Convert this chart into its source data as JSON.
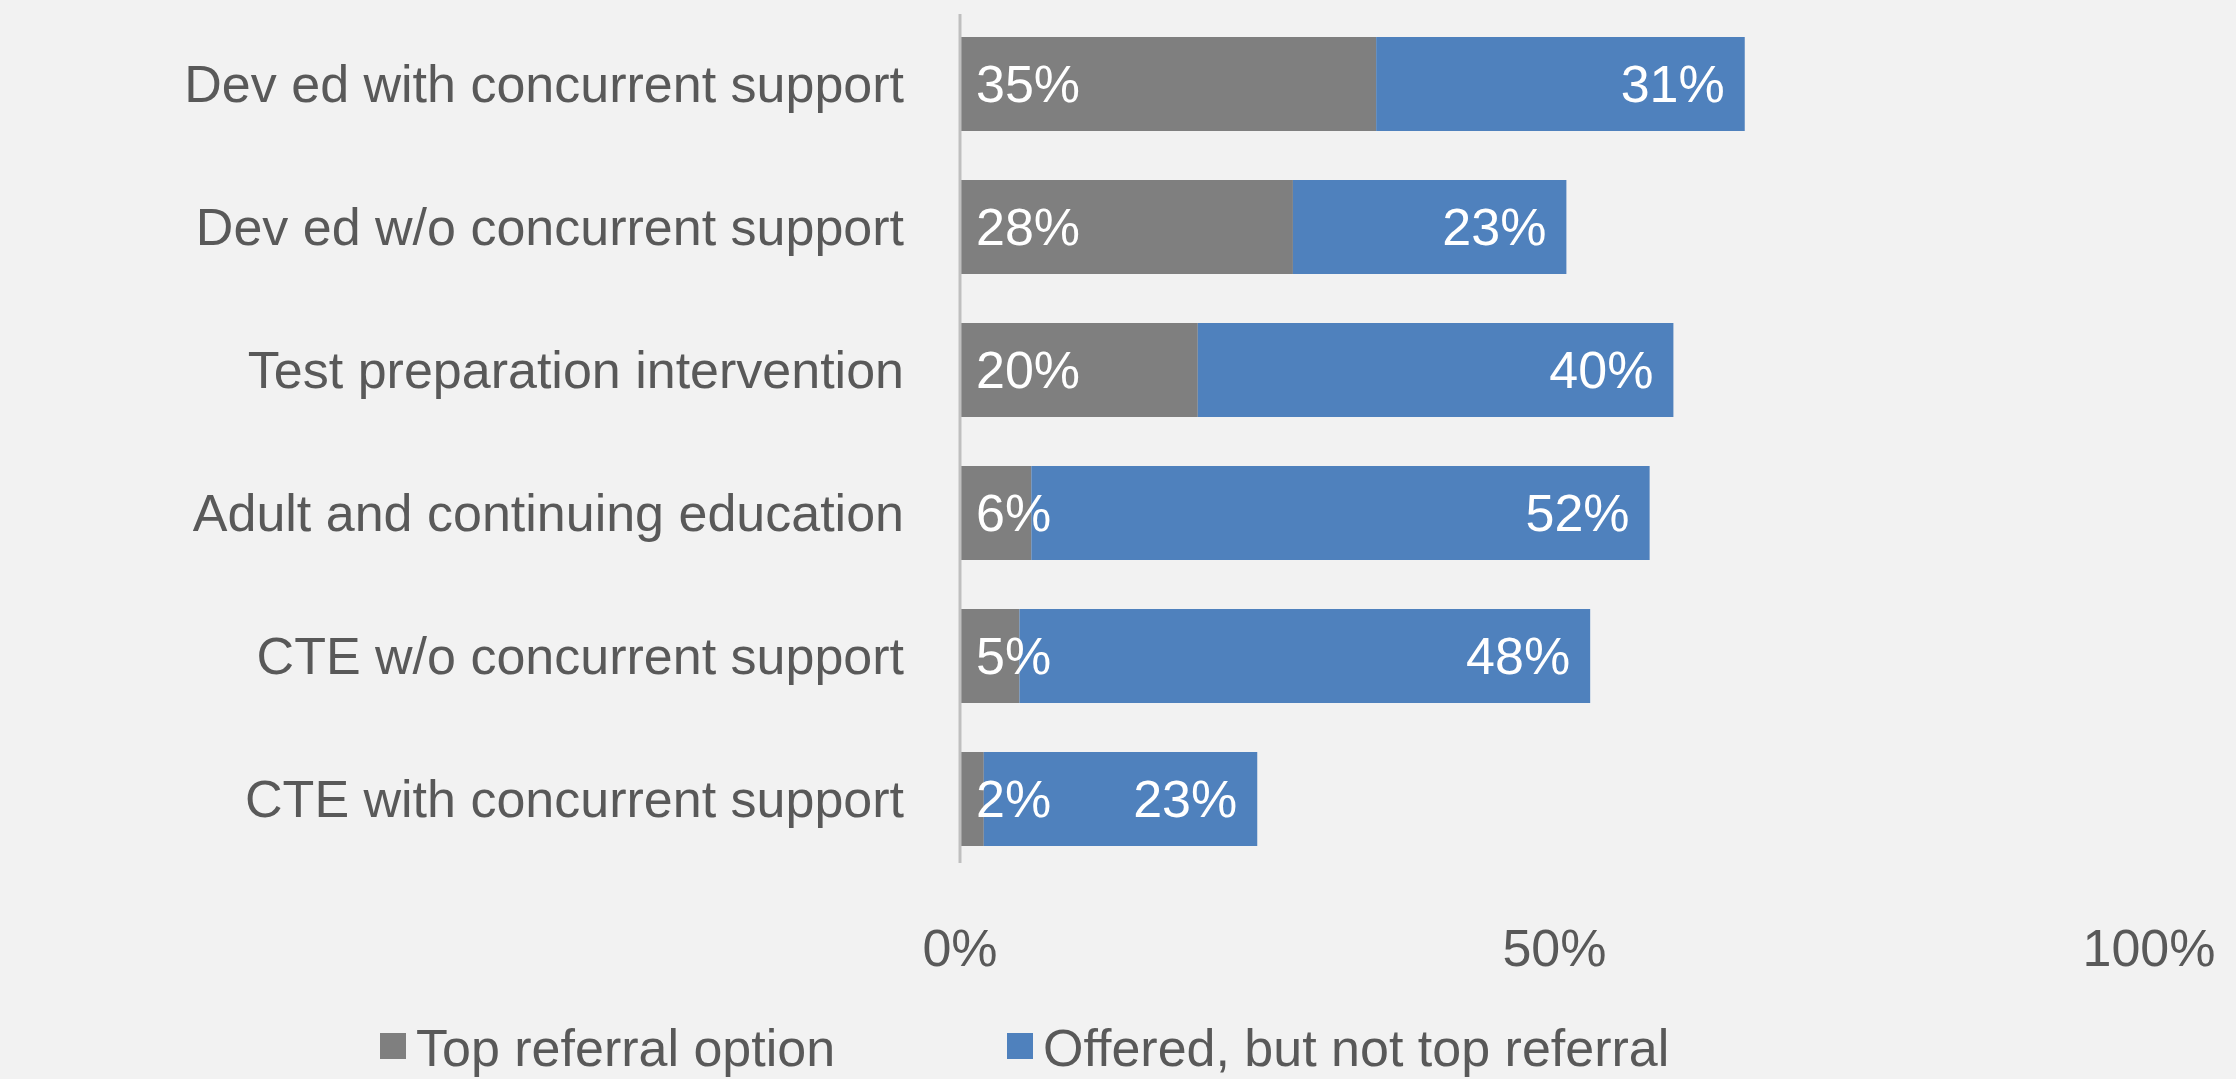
{
  "chart_data": {
    "type": "bar",
    "orientation": "horizontal",
    "stacked": true,
    "categories": [
      "Dev ed with concurrent support",
      "Dev ed w/o concurrent support",
      "Test preparation intervention",
      "Adult and continuing education",
      "CTE w/o concurrent support",
      "CTE with concurrent support"
    ],
    "series": [
      {
        "name": "Top referral option",
        "color": "#7f7f7f",
        "values": [
          35,
          28,
          20,
          6,
          5,
          2
        ],
        "value_labels": [
          "35%",
          "28%",
          "20%",
          "6%",
          "5%",
          "2%"
        ]
      },
      {
        "name": "Offered, but not top referral",
        "color": "#4f81bd",
        "values": [
          31,
          23,
          40,
          52,
          48,
          23
        ],
        "value_labels": [
          "31%",
          "23%",
          "40%",
          "52%",
          "48%",
          "23%"
        ]
      }
    ],
    "xlim": [
      0,
      100
    ],
    "xticks": [
      {
        "value": 0,
        "label": "0%"
      },
      {
        "value": 50,
        "label": "50%"
      },
      {
        "value": 100,
        "label": "100%"
      }
    ],
    "grid": false,
    "legend": "bottom"
  }
}
